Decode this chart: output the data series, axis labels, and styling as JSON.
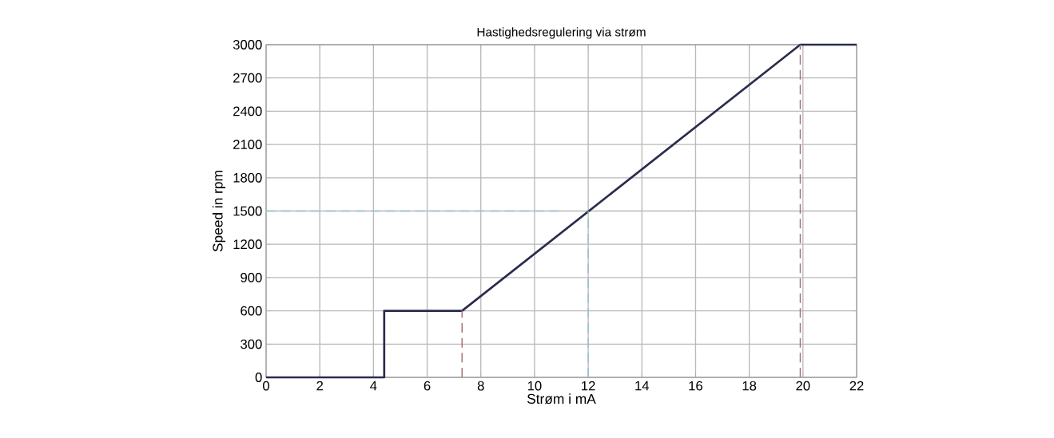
{
  "chart_data": {
    "type": "line",
    "title": "Hastighedsregulering via strøm",
    "xlabel": "Strøm i mA",
    "ylabel": "Speed in rpm",
    "xlim": [
      0,
      22
    ],
    "xticks": [
      0,
      2,
      4,
      6,
      8,
      10,
      12,
      14,
      16,
      18,
      20,
      22
    ],
    "ylim": [
      0,
      3000
    ],
    "yticks": [
      0,
      300,
      600,
      900,
      1200,
      1500,
      1800,
      2100,
      2400,
      2700,
      3000
    ],
    "grid": true,
    "marker": "none",
    "series": [
      {
        "color": "#2a2c4e",
        "line_style": "solid",
        "x": [
          0,
          4.4,
          4.4,
          7.3,
          19.9,
          22
        ],
        "values": [
          0,
          0,
          600,
          600,
          3000,
          3000
        ]
      },
      {
        "color": "#a87272",
        "line_style": "dashed",
        "x": [
          7.3,
          7.3
        ],
        "values": [
          0,
          600
        ]
      },
      {
        "color": "#a87272",
        "line_style": "dashed",
        "x": [
          19.9,
          19.9
        ],
        "values": [
          0,
          3000
        ]
      },
      {
        "color": "#96c1d6",
        "line_style": "dashed",
        "x": [
          0,
          10.9
        ],
        "values": [
          1500,
          1500
        ]
      },
      {
        "color": "#96c1d6",
        "line_style": "dashed",
        "x": [
          12,
          12
        ],
        "values": [
          0,
          1500
        ]
      }
    ]
  }
}
